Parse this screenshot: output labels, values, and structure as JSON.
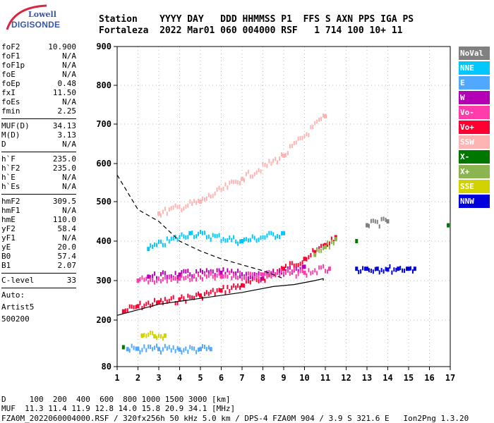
{
  "logo": {
    "line1": "Lowell",
    "line2": "DIGISONDE"
  },
  "header": {
    "line1": "Station    YYYY DAY   DDD HHMMSS P1  FFS S AXN PPS IGA PS",
    "line2": "Fortaleza  2022 Mar01 060 004000 RSF   1 714 100 10+ 11"
  },
  "params": {
    "group1": [
      {
        "label": "foF2",
        "value": "10.900"
      },
      {
        "label": "foF1",
        "value": "N/A"
      },
      {
        "label": "foF1p",
        "value": "N/A"
      },
      {
        "label": "foE",
        "value": "N/A"
      },
      {
        "label": "foEp",
        "value": "0.48"
      },
      {
        "label": "fxI",
        "value": "11.50"
      },
      {
        "label": "foEs",
        "value": "N/A"
      },
      {
        "label": "fmin",
        "value": "2.25"
      }
    ],
    "group2": [
      {
        "label": "MUF(D)",
        "value": "34.13"
      },
      {
        "label": "M(D)",
        "value": "3.13"
      },
      {
        "label": "D",
        "value": "N/A"
      }
    ],
    "group3": [
      {
        "label": "h`F",
        "value": "235.0"
      },
      {
        "label": "h`F2",
        "value": "235.0"
      },
      {
        "label": "h`E",
        "value": "N/A"
      },
      {
        "label": "h`Es",
        "value": "N/A"
      }
    ],
    "group4": [
      {
        "label": "hmF2",
        "value": "309.5"
      },
      {
        "label": "hmF1",
        "value": "N/A"
      },
      {
        "label": "hmE",
        "value": "110.0"
      },
      {
        "label": "yF2",
        "value": "58.4"
      },
      {
        "label": "yF1",
        "value": "N/A"
      },
      {
        "label": "yE",
        "value": "20.0"
      },
      {
        "label": "B0",
        "value": "57.4"
      },
      {
        "label": "B1",
        "value": "2.07"
      }
    ],
    "clevel": {
      "label": "C-level",
      "value": "33"
    },
    "auto": {
      "line1": "Auto:",
      "line2": "Artist5",
      "line3": "500200"
    }
  },
  "legend": [
    {
      "name": "NoVal",
      "color": "#808080"
    },
    {
      "name": "NNE",
      "color": "#00c8ff"
    },
    {
      "name": "E",
      "color": "#50a8ff"
    },
    {
      "name": "W",
      "color": "#b400b4"
    },
    {
      "name": "Vo-",
      "color": "#ff3caa"
    },
    {
      "name": "Vo+",
      "color": "#ff0032"
    },
    {
      "name": "SSW",
      "color": "#ffb4b4"
    },
    {
      "name": "X-",
      "color": "#007800"
    },
    {
      "name": "X+",
      "color": "#8cb450"
    },
    {
      "name": "SSE",
      "color": "#d2d200"
    },
    {
      "name": "NNW",
      "color": "#0000dc"
    }
  ],
  "footer": {
    "line1": "D     100  200  400  600  800 1000 1500 3000 [km]",
    "line2": "MUF  11.3 11.4 11.9 12.8 14.0 15.8 20.9 34.1 [MHz]",
    "line3": "FZA0M_2022060004000.RSF / 320fx256h 50 kHz 5.0 km / DPS-4 FZA0M 904 / 3.9 S 321.6 E   Ion2Png 1.3.20"
  },
  "chart_data": {
    "type": "scatter",
    "xlim": [
      1,
      17
    ],
    "ylim": [
      80,
      900
    ],
    "y_scale": "nonlinear ionogram height scale",
    "xticks": [
      1,
      2,
      3,
      4,
      5,
      6,
      7,
      8,
      9,
      10,
      11,
      12,
      13,
      14,
      15,
      16,
      17
    ],
    "yticks": [
      80,
      200,
      300,
      400,
      500,
      600,
      700,
      800,
      900
    ],
    "grid": true,
    "legend_position": "right",
    "series": [
      {
        "name": "Vo+",
        "color": "#ff0032",
        "x": [
          1.3,
          2.0,
          3.0,
          4.0,
          5.0,
          6.0,
          7.0,
          8.0,
          9.0,
          10.0,
          10.5,
          11.0,
          11.5
        ],
        "y": [
          222,
          235,
          245,
          252,
          262,
          275,
          288,
          305,
          330,
          355,
          372,
          390,
          410
        ]
      },
      {
        "name": "X+",
        "color": "#8cb450",
        "x": [
          10.5,
          11.0,
          11.5
        ],
        "y": [
          365,
          385,
          405
        ]
      },
      {
        "name": "W",
        "color": "#b400b4",
        "x": [
          2.5,
          4.0,
          6.0,
          8.0,
          10.0
        ],
        "y": [
          310,
          315,
          320,
          310,
          335
        ]
      },
      {
        "name": "NNW",
        "color": "#0000dc",
        "x": [
          12.5,
          13.0,
          13.5,
          14.0,
          14.5,
          15.0,
          15.3
        ],
        "y": [
          330,
          330,
          330,
          328,
          330,
          330,
          330
        ]
      },
      {
        "name": "E",
        "color": "#50a8ff",
        "x": [
          1.5,
          2.0,
          3.0,
          4.0,
          5.0,
          5.5
        ],
        "y": [
          125,
          126,
          125,
          124,
          125,
          125
        ]
      },
      {
        "name": "SSE",
        "color": "#d2d200",
        "x": [
          2.2,
          2.8,
          3.3
        ],
        "y": [
          160,
          158,
          160
        ]
      },
      {
        "name": "NNE",
        "color": "#00c8ff",
        "x": [
          2.5,
          4.5,
          7.0,
          9.0
        ],
        "y": [
          380,
          420,
          400,
          420
        ]
      },
      {
        "name": "SSW",
        "color": "#ffb4b4",
        "x": [
          3.0,
          5.0,
          7.0,
          9.0,
          11.0
        ],
        "y": [
          470,
          500,
          560,
          620,
          720
        ]
      },
      {
        "name": "Vo-",
        "color": "#ff3caa",
        "x": [
          2.0,
          4.0,
          6.0,
          8.0,
          10.0,
          11.2
        ],
        "y": [
          300,
          305,
          310,
          315,
          320,
          330
        ]
      },
      {
        "name": "X-",
        "color": "#007800",
        "x": [
          1.3,
          12.5,
          16.9
        ],
        "y": [
          130,
          400,
          440
        ]
      },
      {
        "name": "NoVal",
        "color": "#808080",
        "x": [
          13.0,
          14.0
        ],
        "y": [
          440,
          450
        ]
      }
    ],
    "profile_line": {
      "x": [
        1.0,
        3.0,
        5.0,
        7.0,
        8.5,
        9.5,
        10.5,
        10.9,
        10.9
      ],
      "y": [
        212,
        240,
        255,
        270,
        285,
        290,
        300,
        305,
        300
      ]
    },
    "dashed_line": {
      "x": [
        1.0,
        2.0,
        3.0,
        4.0,
        5.0,
        6.0,
        7.0,
        8.0,
        9.0
      ],
      "y": [
        570,
        480,
        450,
        400,
        375,
        355,
        340,
        325,
        305
      ]
    }
  }
}
